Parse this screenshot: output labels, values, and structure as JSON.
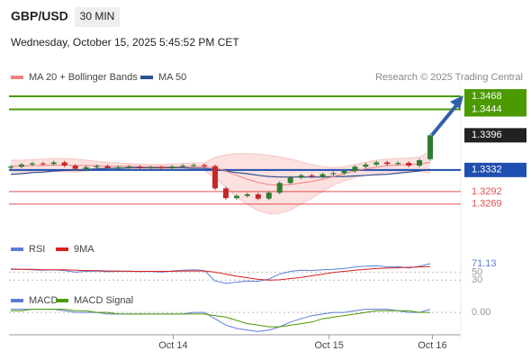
{
  "header": {
    "symbol": "GBP/USD",
    "interval": "30 MIN",
    "datetime": "Wednesday, October 15, 2025 5:45:52 PM CET"
  },
  "chart_data": {
    "type": "candlestick",
    "legend": [
      {
        "name": "MA 20 + Bollinger Bands",
        "color": "#f08080"
      },
      {
        "name": "MA 50",
        "color": "#2f4f8f"
      }
    ],
    "credit": "Research © 2025 Trading Central",
    "up_color": "#2e7d32",
    "down_color": "#c62828",
    "ylim": [
      1.3222,
      1.3488
    ],
    "xlim": [
      -0.5,
      39.5
    ],
    "xticks": [
      {
        "value": 15.1,
        "label": "Oct 14"
      },
      {
        "value": 29.6,
        "label": "Oct 15"
      },
      {
        "value": 39.2,
        "label": "Oct 16"
      }
    ],
    "open": [
      1.3336,
      1.3338,
      1.3342,
      1.3344,
      1.3343,
      1.3346,
      1.334,
      1.3334,
      1.3337,
      1.3339,
      1.3336,
      1.3337,
      1.3338,
      1.3336,
      1.3337,
      1.3335,
      1.3338,
      1.334,
      1.3341,
      1.3339,
      1.3298,
      1.328,
      1.3284,
      1.3287,
      1.3279,
      1.329,
      1.3308,
      1.3318,
      1.3322,
      1.332,
      1.3324,
      1.3326,
      1.333,
      1.3338,
      1.3342,
      1.3346,
      1.3343,
      1.3345,
      1.334,
      1.3352
    ],
    "high": [
      1.3341,
      1.3345,
      1.3347,
      1.3347,
      1.3349,
      1.3349,
      1.3343,
      1.334,
      1.3342,
      1.3342,
      1.334,
      1.3341,
      1.3341,
      1.334,
      1.334,
      1.3341,
      1.3343,
      1.3344,
      1.3344,
      1.3342,
      1.3301,
      1.3287,
      1.329,
      1.329,
      1.3293,
      1.3311,
      1.3321,
      1.3325,
      1.3325,
      1.3327,
      1.3329,
      1.3333,
      1.3341,
      1.3345,
      1.3349,
      1.3349,
      1.3348,
      1.3348,
      1.3353,
      1.3399
    ],
    "low": [
      1.3333,
      1.3335,
      1.3339,
      1.334,
      1.334,
      1.3337,
      1.3331,
      1.3331,
      1.3334,
      1.3333,
      1.3333,
      1.3334,
      1.3333,
      1.3333,
      1.3332,
      1.3332,
      1.3335,
      1.3337,
      1.3336,
      1.3295,
      1.3277,
      1.3277,
      1.3281,
      1.3276,
      1.3276,
      1.3287,
      1.3305,
      1.3315,
      1.3317,
      1.3317,
      1.3321,
      1.3323,
      1.3327,
      1.3335,
      1.3339,
      1.334,
      1.334,
      1.3337,
      1.3337,
      1.3349
    ],
    "close": [
      1.3338,
      1.3342,
      1.3344,
      1.3343,
      1.3346,
      1.334,
      1.3334,
      1.3337,
      1.3339,
      1.3336,
      1.3337,
      1.3338,
      1.3336,
      1.3337,
      1.3335,
      1.3338,
      1.334,
      1.3341,
      1.3339,
      1.3298,
      1.328,
      1.3284,
      1.3287,
      1.3279,
      1.329,
      1.3308,
      1.3318,
      1.3322,
      1.332,
      1.3324,
      1.3326,
      1.333,
      1.3338,
      1.3342,
      1.3346,
      1.3343,
      1.3345,
      1.334,
      1.335,
      1.3396
    ],
    "ma20": [
      1.3339,
      1.3339,
      1.334,
      1.334,
      1.3341,
      1.3341,
      1.334,
      1.334,
      1.334,
      1.3339,
      1.3339,
      1.3339,
      1.3338,
      1.3338,
      1.3338,
      1.3338,
      1.3338,
      1.3338,
      1.3338,
      1.3336,
      1.333,
      1.3322,
      1.3315,
      1.3309,
      1.3305,
      1.3304,
      1.3305,
      1.3308,
      1.3311,
      1.3315,
      1.332,
      1.3325,
      1.333,
      1.3334,
      1.3337,
      1.334,
      1.3341,
      1.3342,
      1.3343,
      1.3346
    ],
    "bb_upper": [
      1.335,
      1.335,
      1.3351,
      1.3352,
      1.3353,
      1.3353,
      1.3352,
      1.335,
      1.3348,
      1.3346,
      1.3345,
      1.3344,
      1.3343,
      1.3342,
      1.3342,
      1.3343,
      1.3344,
      1.3345,
      1.3345,
      1.3355,
      1.336,
      1.3362,
      1.3362,
      1.3361,
      1.3359,
      1.3356,
      1.3352,
      1.3347,
      1.3342,
      1.3338,
      1.3336,
      1.3338,
      1.3342,
      1.3346,
      1.335,
      1.3352,
      1.3353,
      1.3354,
      1.3356,
      1.3366
    ],
    "bb_lower": [
      1.3328,
      1.3328,
      1.3329,
      1.3328,
      1.3329,
      1.3329,
      1.3328,
      1.333,
      1.3332,
      1.3332,
      1.3333,
      1.3334,
      1.3333,
      1.3334,
      1.3334,
      1.3333,
      1.3332,
      1.3331,
      1.3331,
      1.3317,
      1.33,
      1.3282,
      1.3268,
      1.3257,
      1.3251,
      1.3252,
      1.3258,
      1.3269,
      1.328,
      1.3292,
      1.3304,
      1.3312,
      1.3318,
      1.3322,
      1.3324,
      1.3328,
      1.3329,
      1.333,
      1.333,
      1.3326
    ],
    "ma50": [
      1.3324,
      1.3325,
      1.3327,
      1.3328,
      1.333,
      1.3331,
      1.3332,
      1.3333,
      1.3334,
      1.3335,
      1.3335,
      1.3336,
      1.3336,
      1.3336,
      1.3336,
      1.3336,
      1.3336,
      1.3335,
      1.3335,
      1.3333,
      1.333,
      1.3327,
      1.3325,
      1.3322,
      1.332,
      1.3319,
      1.3319,
      1.3319,
      1.3319,
      1.3319,
      1.332,
      1.332,
      1.3321,
      1.3322,
      1.3323,
      1.3324,
      1.3326,
      1.3328,
      1.333,
      1.3333
    ],
    "levels": [
      {
        "value": 1.3468,
        "color": "#4a9a00",
        "line": true,
        "box": true
      },
      {
        "value": 1.3444,
        "color": "#4a9a00",
        "line": true,
        "box": true
      },
      {
        "value": 1.3396,
        "color": "#222222",
        "line": false,
        "box": true
      },
      {
        "value": 1.3332,
        "color": "#1f4fb0",
        "line": true,
        "box": true
      },
      {
        "value": 1.3292,
        "color": "#e05050",
        "line": true,
        "box": false
      },
      {
        "value": 1.3269,
        "color": "#e05050",
        "line": true,
        "box": false
      }
    ],
    "rsi": {
      "ylim": [
        15,
        89
      ],
      "yticks": [
        50,
        30
      ],
      "series": [
        {
          "name": "RSI",
          "color": "#5b7fd6",
          "values": [
            58,
            57,
            56,
            55,
            56,
            54,
            50,
            52,
            53,
            51,
            52,
            53,
            51,
            52,
            50,
            53,
            55,
            56,
            54,
            28,
            22,
            25,
            28,
            27,
            33,
            45,
            52,
            55,
            54,
            56,
            57,
            59,
            63,
            65,
            66,
            63,
            64,
            60,
            65,
            71.13
          ]
        },
        {
          "name": "9MA",
          "color": "#d62020",
          "values": [
            57,
            57,
            57,
            56,
            56,
            56,
            55,
            54,
            54,
            53,
            53,
            52,
            52,
            52,
            52,
            52,
            53,
            53,
            53,
            50,
            45,
            40,
            36,
            32,
            30,
            31,
            34,
            37,
            41,
            45,
            49,
            52,
            55,
            57,
            59,
            60,
            61,
            62,
            63,
            64
          ]
        }
      ]
    },
    "macd": {
      "ylim": [
        -0.0014,
        0.0004
      ],
      "yticks": [
        {
          "value": 0,
          "label": "0.00"
        }
      ],
      "series": [
        {
          "name": "MACD",
          "color": "#5b7fd6",
          "values": [
            0.0002,
            0.0002,
            0.0002,
            0.0002,
            0.0002,
            0.0001,
            0.0,
            0.0,
            0.0,
            -0.0001,
            -0.0001,
            -0.0001,
            -0.0001,
            -0.0001,
            -0.0001,
            -0.0001,
            -0.0001,
            0.0,
            0.0,
            -0.0004,
            -0.0008,
            -0.001,
            -0.0011,
            -0.0012,
            -0.0011,
            -0.0009,
            -0.0006,
            -0.0004,
            -0.0002,
            -0.0001,
            0.0,
            0.0,
            0.0001,
            0.0002,
            0.0002,
            0.0002,
            0.0001,
            0.0,
            0.0,
            0.0002
          ]
        },
        {
          "name": "MACD Signal",
          "color": "#4a9a00",
          "values": [
            0.0001,
            0.0001,
            0.0002,
            0.0002,
            0.0002,
            0.0002,
            0.0001,
            0.0001,
            0.0,
            0.0,
            -0.0001,
            -0.0001,
            -0.0001,
            -0.0001,
            -0.0001,
            -0.0001,
            -0.0001,
            -0.0001,
            -0.0001,
            -0.0002,
            -0.0003,
            -0.0005,
            -0.0007,
            -0.0008,
            -0.0009,
            -0.0009,
            -0.0008,
            -0.0007,
            -0.0006,
            -0.0004,
            -0.0003,
            -0.0002,
            -0.0001,
            0.0,
            0.0001,
            0.0001,
            0.0001,
            0.0001,
            0.0,
            0.0
          ]
        }
      ]
    }
  }
}
